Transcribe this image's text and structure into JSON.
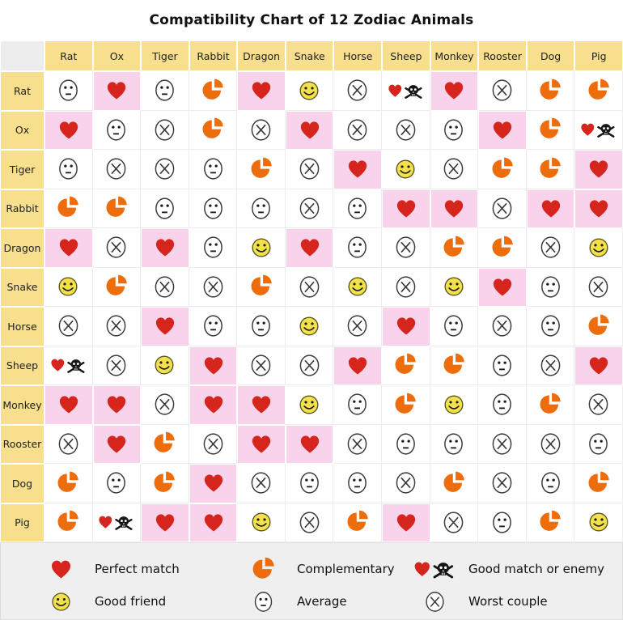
{
  "title": "Compatibility Chart of 12 Zodiac Animals",
  "colors": {
    "header_bg": "#f7df8e",
    "corner_bg": "#ededed",
    "pink_bg": "#f9d3ec",
    "heart_red": "#d6251d",
    "pie_orange": "#ed6c0c",
    "smiley_yellow": "#f2e14a",
    "legend_bg": "#efefef",
    "outline_dark": "#3a3a3a"
  },
  "chart_data": {
    "type": "heatmap",
    "title": "Compatibility Chart of 12 Zodiac Animals",
    "animals": [
      "Rat",
      "Ox",
      "Tiger",
      "Rabbit",
      "Dragon",
      "Snake",
      "Horse",
      "Sheep",
      "Monkey",
      "Rooster",
      "Dog",
      "Pig"
    ],
    "icon_meanings": {
      "perfect": "Perfect match (red heart, pink cell)",
      "comp": "Complementary (orange pie)",
      "enemy": "Good match or enemy (heart + skull)",
      "friend": "Good friend (yellow smiley)",
      "avg": "Average (neutral face)",
      "worst": "Worst couple (circled X)"
    },
    "matrix": [
      [
        "avg",
        "perfect",
        "avg",
        "comp",
        "perfect",
        "friend",
        "worst",
        "enemy",
        "perfect",
        "worst",
        "comp",
        "comp"
      ],
      [
        "perfect",
        "avg",
        "worst",
        "comp",
        "worst",
        "perfect",
        "worst",
        "worst",
        "avg",
        "perfect",
        "comp",
        "enemy"
      ],
      [
        "avg",
        "worst",
        "worst",
        "avg",
        "comp",
        "worst",
        "perfect",
        "friend",
        "worst",
        "comp",
        "comp",
        "perfect"
      ],
      [
        "comp",
        "comp",
        "avg",
        "avg",
        "avg",
        "worst",
        "avg",
        "perfect",
        "perfect",
        "worst",
        "perfect",
        "perfect"
      ],
      [
        "perfect",
        "worst",
        "perfect",
        "avg",
        "friend",
        "perfect",
        "avg",
        "worst",
        "comp",
        "comp",
        "worst",
        "friend"
      ],
      [
        "friend",
        "comp",
        "worst",
        "worst",
        "comp",
        "worst",
        "friend",
        "worst",
        "friend",
        "perfect",
        "avg",
        "worst"
      ],
      [
        "worst",
        "worst",
        "perfect",
        "avg",
        "avg",
        "friend",
        "worst",
        "perfect",
        "avg",
        "worst",
        "avg",
        "comp"
      ],
      [
        "enemy",
        "worst",
        "friend",
        "perfect",
        "worst",
        "worst",
        "perfect",
        "comp",
        "comp",
        "avg",
        "worst",
        "perfect"
      ],
      [
        "perfect",
        "perfect",
        "worst",
        "perfect",
        "perfect",
        "friend",
        "avg",
        "comp",
        "friend",
        "avg",
        "comp",
        "worst"
      ],
      [
        "worst",
        "perfect",
        "comp",
        "worst",
        "perfect",
        "perfect",
        "worst",
        "avg",
        "avg",
        "worst",
        "worst",
        "avg"
      ],
      [
        "comp",
        "avg",
        "comp",
        "perfect",
        "worst",
        "avg",
        "avg",
        "worst",
        "comp",
        "worst",
        "avg",
        "comp"
      ],
      [
        "comp",
        "enemy",
        "perfect",
        "perfect",
        "friend",
        "worst",
        "comp",
        "perfect",
        "worst",
        "avg",
        "comp",
        "friend"
      ]
    ],
    "legend_position": "bottom",
    "legend": [
      {
        "icon": "perfect",
        "label": "Perfect match"
      },
      {
        "icon": "comp",
        "label": "Complementary"
      },
      {
        "icon": "enemy",
        "label": "Good match or enemy"
      },
      {
        "icon": "friend",
        "label": "Good friend"
      },
      {
        "icon": "avg",
        "label": "Average"
      },
      {
        "icon": "worst",
        "label": "Worst couple"
      }
    ]
  }
}
